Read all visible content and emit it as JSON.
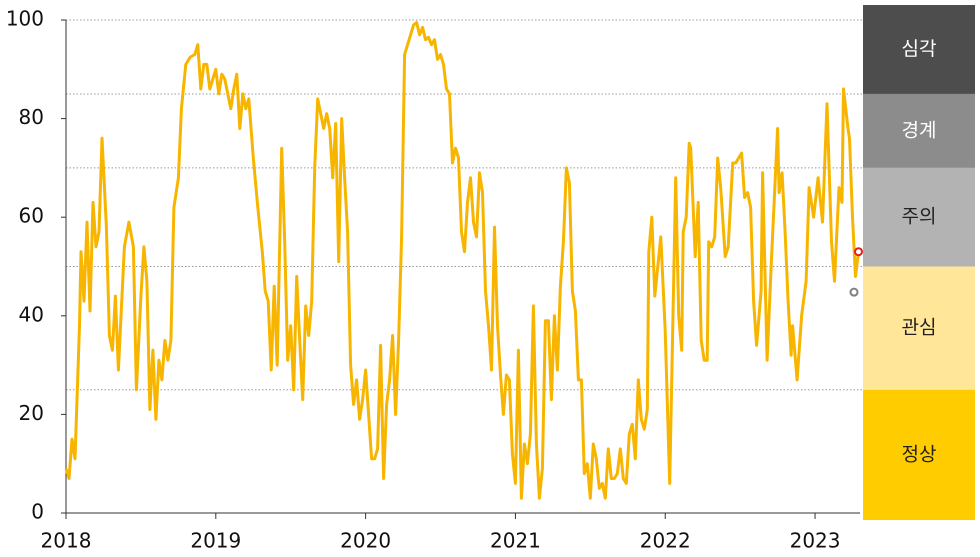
{
  "chart_data": {
    "type": "line",
    "x": [
      2018.0,
      2018.02,
      2018.04,
      2018.06,
      2018.09,
      2018.1,
      2018.12,
      2018.14,
      2018.16,
      2018.18,
      2018.2,
      2018.22,
      2018.24,
      2018.27,
      2018.29,
      2018.31,
      2018.33,
      2018.35,
      2018.39,
      2018.42,
      2018.45,
      2018.47,
      2018.5,
      2018.52,
      2018.54,
      2018.56,
      2018.58,
      2018.6,
      2018.62,
      2018.64,
      2018.66,
      2018.68,
      2018.7,
      2018.72,
      2018.75,
      2018.77,
      2018.8,
      2018.83,
      2018.86,
      2018.88,
      2018.9,
      2018.92,
      2018.94,
      2018.96,
      2018.98,
      2019.0,
      2019.02,
      2019.04,
      2019.06,
      2019.08,
      2019.1,
      2019.12,
      2019.14,
      2019.16,
      2019.18,
      2019.2,
      2019.22,
      2019.25,
      2019.28,
      2019.31,
      2019.33,
      2019.35,
      2019.37,
      2019.39,
      2019.41,
      2019.44,
      2019.46,
      2019.48,
      2019.5,
      2019.52,
      2019.54,
      2019.56,
      2019.58,
      2019.6,
      2019.62,
      2019.64,
      2019.66,
      2019.68,
      2019.7,
      2019.72,
      2019.74,
      2019.76,
      2019.78,
      2019.8,
      2019.82,
      2019.84,
      2019.86,
      2019.88,
      2019.9,
      2019.92,
      2019.94,
      2019.96,
      2019.98,
      2020.0,
      2020.02,
      2020.04,
      2020.06,
      2020.08,
      2020.1,
      2020.12,
      2020.14,
      2020.16,
      2020.18,
      2020.2,
      2020.22,
      2020.24,
      2020.26,
      2020.28,
      2020.3,
      2020.32,
      2020.34,
      2020.36,
      2020.38,
      2020.4,
      2020.42,
      2020.44,
      2020.46,
      2020.48,
      2020.5,
      2020.52,
      2020.54,
      2020.56,
      2020.58,
      2020.6,
      2020.62,
      2020.64,
      2020.66,
      2020.68,
      2020.7,
      2020.72,
      2020.74,
      2020.76,
      2020.78,
      2020.8,
      2020.82,
      2020.84,
      2020.86,
      2020.88,
      2020.9,
      2020.92,
      2020.94,
      2020.96,
      2020.98,
      2021.0,
      2021.02,
      2021.04,
      2021.06,
      2021.08,
      2021.1,
      2021.12,
      2021.14,
      2021.16,
      2021.18,
      2021.2,
      2021.22,
      2021.24,
      2021.26,
      2021.28,
      2021.3,
      2021.32,
      2021.34,
      2021.36,
      2021.38,
      2021.4,
      2021.42,
      2021.44,
      2021.46,
      2021.48,
      2021.5,
      2021.52,
      2021.54,
      2021.56,
      2021.58,
      2021.6,
      2021.62,
      2021.64,
      2021.66,
      2021.68,
      2021.7,
      2021.72,
      2021.74,
      2021.76,
      2021.78,
      2021.8,
      2021.82,
      2021.84,
      2021.86,
      2021.88,
      2021.89,
      2021.91,
      2021.93,
      2021.97,
      2022.0,
      2022.03,
      2022.07,
      2022.09,
      2022.11,
      2022.12,
      2022.14,
      2022.16,
      2022.17,
      2022.2,
      2022.22,
      2022.24,
      2022.26,
      2022.28,
      2022.29,
      2022.31,
      2022.33,
      2022.35,
      2022.37,
      2022.4,
      2022.42,
      2022.45,
      2022.47,
      2022.51,
      2022.53,
      2022.55,
      2022.57,
      2022.59,
      2022.61,
      2022.64,
      2022.65,
      2022.68,
      2022.71,
      2022.75,
      2022.76,
      2022.78,
      2022.8,
      2022.82,
      2022.84,
      2022.85,
      2022.88,
      2022.91,
      2022.94,
      2022.96,
      2022.99,
      2023.02,
      2023.05,
      2023.08,
      2023.11,
      2023.13,
      2023.16,
      2023.18,
      2023.19,
      2023.22,
      2023.23,
      2023.25,
      2023.27,
      2023.29
    ],
    "values": [
      9,
      7,
      15,
      11,
      38,
      53,
      43,
      59,
      41,
      63,
      54,
      57,
      76,
      58,
      36,
      33,
      44,
      29,
      54,
      59,
      54,
      25,
      44,
      54,
      47,
      21,
      33,
      19,
      31,
      27,
      35,
      31,
      35,
      62,
      68,
      82,
      91,
      92.5,
      93,
      95,
      86,
      91,
      91,
      86,
      88,
      90,
      85,
      89,
      88,
      85,
      82,
      86,
      89,
      78,
      85,
      82,
      84,
      72,
      62,
      53,
      45,
      43,
      29,
      46,
      30,
      74,
      55,
      31,
      38,
      25,
      48,
      35,
      23,
      42,
      36,
      43,
      70,
      84,
      81,
      78,
      81,
      78,
      68,
      79,
      51,
      80,
      68,
      57,
      30,
      22,
      27,
      19,
      23,
      29,
      20,
      11,
      11,
      13,
      34,
      7,
      22,
      27,
      36,
      20,
      35,
      56,
      93,
      95,
      97,
      99,
      99.5,
      97,
      98.5,
      96,
      96.5,
      95,
      96,
      92,
      93,
      91,
      86,
      85,
      71,
      74,
      72,
      57,
      53,
      63,
      68,
      59,
      56,
      69,
      65,
      45,
      38,
      29,
      58,
      38,
      28,
      20,
      28,
      27,
      12,
      6,
      33,
      3,
      14,
      10,
      16,
      42,
      14,
      3,
      9,
      39,
      39,
      23,
      40,
      29,
      46,
      55,
      70,
      67,
      45,
      41,
      27,
      27,
      8,
      10,
      3,
      14,
      11,
      5,
      6,
      3,
      13,
      7,
      7,
      8,
      13,
      7,
      6,
      16,
      18,
      11,
      27,
      19,
      17,
      21,
      53,
      60,
      44,
      56,
      37,
      6,
      68,
      40,
      33,
      57,
      60,
      75,
      74,
      52,
      63,
      35,
      31,
      31,
      55,
      54,
      56,
      72,
      66,
      52,
      54,
      71,
      71,
      73,
      64,
      65,
      62,
      43,
      34,
      45,
      69,
      31,
      52,
      78,
      65,
      69,
      57,
      43,
      32,
      38,
      27,
      40,
      47,
      66,
      60,
      68,
      59,
      83,
      55,
      47,
      66,
      63,
      86,
      78,
      76,
      60,
      48,
      53
    ],
    "color": "#f7b500",
    "markers": [
      {
        "x": 2023.29,
        "y": 53,
        "color": "#e0201b"
      },
      {
        "x": 2023.26,
        "y": 44.8,
        "color": "#808080"
      }
    ],
    "xlim": [
      2018,
      2023.3
    ],
    "xticks": [
      2018,
      2019,
      2020,
      2021,
      2022,
      2023
    ],
    "ylim": [
      0,
      100
    ],
    "yticks": [
      0,
      20,
      40,
      60,
      80,
      100
    ],
    "bands": [
      {
        "label": "심각",
        "from": 85,
        "to": 100,
        "color": "#4d4d4d",
        "text_color": "#ffffff"
      },
      {
        "label": "경계",
        "from": 70,
        "to": 85,
        "color": "#8c8c8c",
        "text_color": "#ffffff"
      },
      {
        "label": "주의",
        "from": 50,
        "to": 70,
        "color": "#b3b3b3",
        "text_color": "#222222"
      },
      {
        "label": "관심",
        "from": 25,
        "to": 50,
        "color": "#ffe699",
        "text_color": "#222222"
      },
      {
        "label": "정상",
        "from": 0,
        "to": 25,
        "color": "#ffcc00",
        "text_color": "#222222"
      }
    ]
  }
}
